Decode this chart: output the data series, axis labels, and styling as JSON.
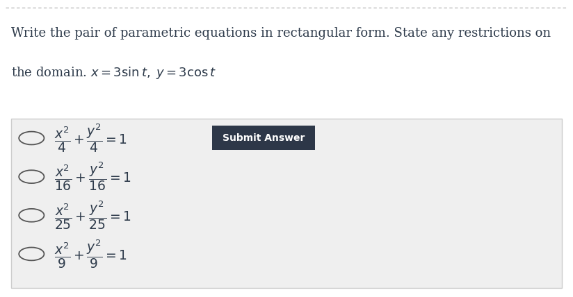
{
  "bg_color": "#ffffff",
  "box_bg_color": "#efefef",
  "box_border_color": "#cccccc",
  "title_text_line1": "Write the pair of parametric equations in rectangular form. State any restrictions on",
  "title_text_line2": "the domain. $x = 3\\sin t,\\; y = 3\\cos t$",
  "options": [
    {
      "label": "$\\dfrac{x^2}{4} + \\dfrac{y^2}{4} = 1$"
    },
    {
      "label": "$\\dfrac{x^2}{16} + \\dfrac{y^2}{16} = 1$"
    },
    {
      "label": "$\\dfrac{x^2}{25} + \\dfrac{y^2}{25} = 1$"
    },
    {
      "label": "$\\dfrac{x^2}{9} + \\dfrac{y^2}{9} = 1$"
    }
  ],
  "submit_button_text": "Submit Answer",
  "submit_button_bg": "#2d3748",
  "submit_button_text_color": "#ffffff",
  "title_color": "#2d3a4a",
  "option_color": "#2d3a4a",
  "dashed_line_color": "#aaaaaa",
  "radio_color": "#555555",
  "title_fontsize": 13.0,
  "option_fontsize": 13.5
}
